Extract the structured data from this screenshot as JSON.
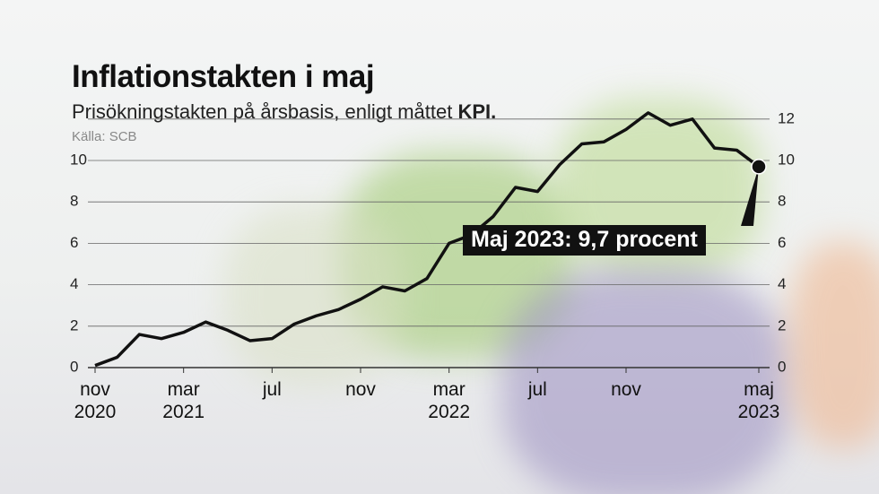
{
  "title": "Inflationstakten i maj",
  "subtitle": {
    "text": "Prisökningstakten på årsbasis, enligt måttet ",
    "emphasis": "KPI."
  },
  "source": "Källa: SCB",
  "chart_data": {
    "type": "line",
    "categories": [
      "nov\n2020",
      null,
      null,
      null,
      "mar\n2021",
      null,
      null,
      null,
      "jul",
      null,
      null,
      null,
      "nov",
      null,
      null,
      null,
      "mar\n2022",
      null,
      null,
      null,
      "jul",
      null,
      null,
      null,
      "nov",
      null,
      null,
      null,
      null,
      null,
      "maj\n2023"
    ],
    "series": [
      {
        "name": "KPI",
        "color": "#111111",
        "values": [
          0.1,
          0.5,
          1.6,
          1.4,
          1.7,
          2.2,
          1.8,
          1.3,
          1.4,
          2.1,
          2.5,
          2.8,
          3.3,
          3.9,
          3.7,
          4.3,
          6.0,
          6.4,
          7.3,
          8.7,
          8.5,
          9.8,
          10.8,
          10.9,
          11.5,
          12.3,
          11.7,
          12.0,
          10.6,
          10.5,
          9.7
        ]
      }
    ],
    "ylim": [
      0,
      12
    ],
    "yticks": [
      0,
      2,
      4,
      6,
      8,
      10
    ],
    "y2lim": [
      0,
      12
    ],
    "y2ticks": [
      0,
      2,
      4,
      6,
      8,
      10,
      12
    ],
    "grid": true,
    "annotation": "Maj 2023: 9,7 procent"
  }
}
